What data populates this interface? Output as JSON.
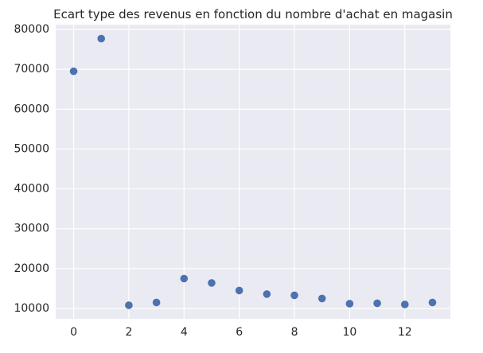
{
  "chart_data": {
    "type": "scatter",
    "title": "Ecart type des revenus en fonction du nombre d'achat en magasin",
    "xlabel": "",
    "ylabel": "",
    "x": [
      0,
      1,
      2,
      3,
      4,
      5,
      6,
      7,
      8,
      9,
      10,
      11,
      12,
      13
    ],
    "y": [
      69500,
      77700,
      10800,
      11500,
      17500,
      16400,
      14500,
      13600,
      13300,
      12500,
      11200,
      11300,
      11000,
      11500
    ],
    "xlim": [
      -0.65,
      13.65
    ],
    "ylim": [
      7400,
      81200
    ],
    "x_ticks": [
      0,
      2,
      4,
      6,
      8,
      10,
      12
    ],
    "y_ticks": [
      10000,
      20000,
      30000,
      40000,
      50000,
      60000,
      70000,
      80000
    ],
    "x_tick_labels": [
      "0",
      "2",
      "4",
      "6",
      "8",
      "10",
      "12"
    ],
    "y_tick_labels": [
      "10000",
      "20000",
      "30000",
      "40000",
      "50000",
      "60000",
      "70000",
      "80000"
    ],
    "grid": true,
    "legend": "none",
    "colors": {
      "background": "#eaeaf2",
      "grid": "#ffffff",
      "point": "#4c72b0",
      "text": "#262626"
    }
  }
}
